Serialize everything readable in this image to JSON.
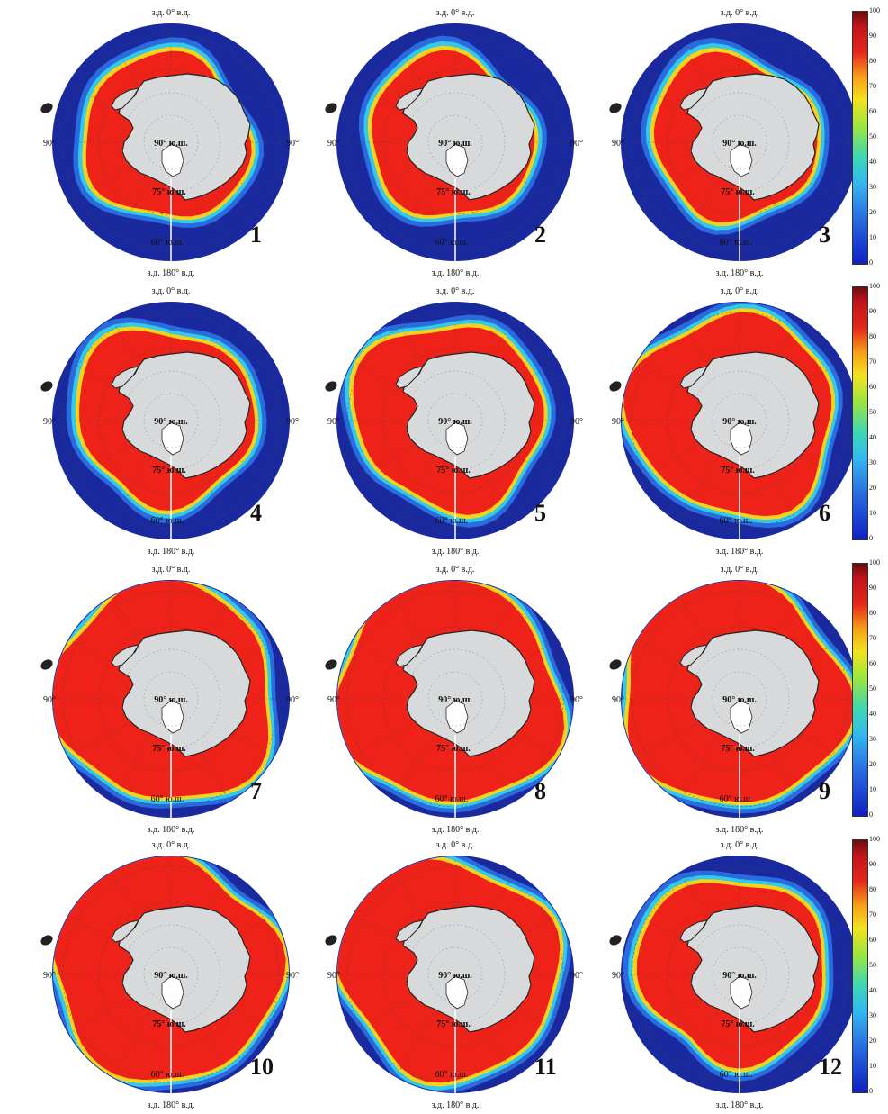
{
  "label_texts": {
    "top": "з.д.  0°  в.д.",
    "bottom": "з.д.  180°  в.д.",
    "left": "90°",
    "right": "90°",
    "pole": "90° ю.ш.",
    "lat75": "75° ю.ш.",
    "lat60": "60° ю.ш."
  },
  "colorbar_ticks": [
    "100",
    "90",
    "80",
    "70",
    "60",
    "50",
    "40",
    "30",
    "20",
    "10",
    "0"
  ],
  "colors": {
    "ocean": "#1a2a9e",
    "land": "#d7d9da",
    "ice_high": "#ee2218",
    "ice_edge_mid": "#f6d21e",
    "ice_edge_low": "#33c9e9"
  },
  "panels": [
    {
      "number": "1",
      "ice_extent": 0.18
    },
    {
      "number": "2",
      "ice_extent": 0.15
    },
    {
      "number": "3",
      "ice_extent": 0.16
    },
    {
      "number": "4",
      "ice_extent": 0.3
    },
    {
      "number": "5",
      "ice_extent": 0.42
    },
    {
      "number": "6",
      "ice_extent": 0.58
    },
    {
      "number": "7",
      "ice_extent": 0.78
    },
    {
      "number": "8",
      "ice_extent": 0.82
    },
    {
      "number": "9",
      "ice_extent": 0.84
    },
    {
      "number": "10",
      "ice_extent": 0.85
    },
    {
      "number": "11",
      "ice_extent": 0.76
    },
    {
      "number": "12",
      "ice_extent": 0.4
    }
  ]
}
